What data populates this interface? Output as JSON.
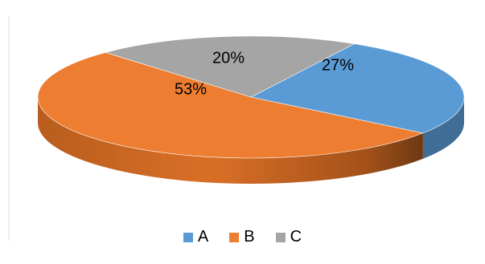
{
  "chart_data": {
    "type": "pie",
    "style": "3d",
    "title": "",
    "categories": [
      "A",
      "B",
      "C"
    ],
    "values": [
      27,
      53,
      20
    ],
    "data_labels": [
      "27%",
      "53%",
      "20%"
    ],
    "colors": [
      "#5b9bd5",
      "#ed7d31",
      "#a5a5a5"
    ],
    "legend": {
      "position": "bottom",
      "items": [
        {
          "label": "A",
          "color": "#5b9bd5"
        },
        {
          "label": "B",
          "color": "#ed7d31"
        },
        {
          "label": "C",
          "color": "#a5a5a5"
        }
      ]
    }
  }
}
